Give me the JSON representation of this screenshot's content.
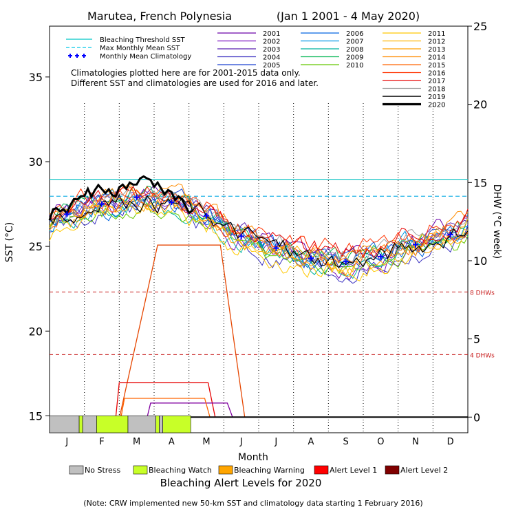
{
  "chart_data": {
    "type": "line",
    "title": "Marutea, French Polynesia",
    "date_range": "(Jan 1 2001 - 4 May 2020)",
    "xlabel": "Month",
    "ylabel_left": "SST (°C)",
    "ylabel_right": "DHW (°C week)",
    "months": [
      "J",
      "F",
      "M",
      "A",
      "M",
      "J",
      "J",
      "A",
      "S",
      "O",
      "N",
      "D"
    ],
    "sst_axis": {
      "min": 14,
      "max": 38,
      "ticks": [
        15,
        20,
        25,
        30,
        35
      ]
    },
    "dhw_axis": {
      "min": -1,
      "max": 25,
      "ticks": [
        0,
        5,
        10,
        15,
        20,
        25
      ]
    },
    "grid": "dotted vertical lines at month boundaries",
    "thresholds": {
      "bleaching_threshold_sst": 28.96,
      "max_monthly_mean_sst": 27.96,
      "dhw_8_label": "8 DHWs",
      "dhw_4_label": "4 DHWs",
      "dhw_8_value": 8,
      "dhw_4_value": 4
    },
    "legend_reference": [
      {
        "label": "Bleaching Threshold SST",
        "color": "#00c8c8",
        "style": "solid"
      },
      {
        "label": "Max Monthly Mean SST",
        "color": "#00c8e6",
        "style": "dashed"
      },
      {
        "label": "Monthly Mean Climatology",
        "color": "#0000ff",
        "style": "plus"
      }
    ],
    "note_line1": "Climatologies plotted here are for 2001-2015 data only.",
    "note_line2": "Different SST and climatologies are used for 2016 and later.",
    "climatology": {
      "x": [
        0.5,
        1.5,
        2.5,
        3.5,
        4.5,
        5.5,
        6.5,
        7.5,
        8.5,
        9.5,
        10.5,
        11.5
      ],
      "values": [
        26.9,
        27.5,
        27.9,
        27.6,
        26.8,
        25.6,
        24.9,
        24.3,
        24.1,
        24.4,
        25.1,
        25.7
      ]
    },
    "series": [
      {
        "name": "2001",
        "color": "#6a00a8",
        "offset": 0.3
      },
      {
        "name": "2002",
        "color": "#7a10c0",
        "offset": -0.2
      },
      {
        "name": "2003",
        "color": "#5a20b0",
        "offset": 0.1
      },
      {
        "name": "2004",
        "color": "#3a30c0",
        "offset": -0.4
      },
      {
        "name": "2005",
        "color": "#1a40d0",
        "offset": 0.2
      },
      {
        "name": "2006",
        "color": "#0064e0",
        "offset": -0.1
      },
      {
        "name": "2007",
        "color": "#0096e6",
        "offset": 0.0
      },
      {
        "name": "2008",
        "color": "#00b4a0",
        "offset": -0.3
      },
      {
        "name": "2009",
        "color": "#00b450",
        "offset": 0.15
      },
      {
        "name": "2010",
        "color": "#64c800",
        "offset": -0.5
      },
      {
        "name": "2011",
        "color": "#ffc800",
        "offset": -0.6
      },
      {
        "name": "2012",
        "color": "#ffb400",
        "offset": 0.05
      },
      {
        "name": "2013",
        "color": "#ffa000",
        "offset": -0.25
      },
      {
        "name": "2014",
        "color": "#ff8c00",
        "offset": 0.35
      },
      {
        "name": "2015",
        "color": "#ff6400",
        "offset": 0.1
      },
      {
        "name": "2016",
        "color": "#ff3200",
        "offset": 0.6
      },
      {
        "name": "2017",
        "color": "#e60000",
        "offset": 0.4
      },
      {
        "name": "2018",
        "color": "#a0a0a0",
        "offset": 0.2
      },
      {
        "name": "2019",
        "color": "#000000",
        "offset": 0.0,
        "width": 1.2
      },
      {
        "name": "2020",
        "color": "#000000",
        "offset": 0.5,
        "width": 3.0,
        "end_month": 4.1
      }
    ],
    "dhw_series": [
      {
        "name": "2016",
        "color": "#e64600",
        "points": [
          [
            2.0,
            -0.1
          ],
          [
            3.1,
            11.0
          ],
          [
            4.9,
            11.0
          ],
          [
            5.6,
            0
          ]
        ]
      },
      {
        "name": "2017",
        "color": "#e60000",
        "points": [
          [
            1.9,
            0
          ],
          [
            2.0,
            2.2
          ],
          [
            4.55,
            2.2
          ],
          [
            4.75,
            0
          ]
        ]
      },
      {
        "name": "2019",
        "color": "#8000a0",
        "points": [
          [
            2.8,
            0
          ],
          [
            2.9,
            0.9
          ],
          [
            5.1,
            0.9
          ],
          [
            5.25,
            0
          ]
        ]
      },
      {
        "name": "2015",
        "color": "#ff6400",
        "points": [
          [
            2.05,
            0
          ],
          [
            2.15,
            1.2
          ],
          [
            4.45,
            1.2
          ],
          [
            4.6,
            0
          ]
        ]
      }
    ],
    "alert_bar_2020": [
      {
        "from": 0.0,
        "to": 0.85,
        "level": "No Stress"
      },
      {
        "from": 0.85,
        "to": 0.95,
        "level": "Bleaching Watch"
      },
      {
        "from": 0.95,
        "to": 1.35,
        "level": "No Stress"
      },
      {
        "from": 1.35,
        "to": 2.25,
        "level": "Bleaching Watch"
      },
      {
        "from": 2.25,
        "to": 3.05,
        "level": "No Stress"
      },
      {
        "from": 3.05,
        "to": 3.15,
        "level": "Bleaching Watch"
      },
      {
        "from": 3.15,
        "to": 3.25,
        "level": "No Stress"
      },
      {
        "from": 3.25,
        "to": 4.05,
        "level": "Bleaching Watch"
      }
    ],
    "alert_legend_title": "Bleaching Alert Levels for 2020",
    "alert_legend": [
      {
        "label": "No Stress",
        "color": "#c0c0c0"
      },
      {
        "label": "Bleaching Watch",
        "color": "#c8ff28"
      },
      {
        "label": "Bleaching Warning",
        "color": "#ffa500"
      },
      {
        "label": "Alert Level 1",
        "color": "#ff0000"
      },
      {
        "label": "Alert Level 2",
        "color": "#800000"
      }
    ],
    "footnote": "(Note: CRW implemented new 50-km SST and climatology data starting 1 February 2016)"
  }
}
